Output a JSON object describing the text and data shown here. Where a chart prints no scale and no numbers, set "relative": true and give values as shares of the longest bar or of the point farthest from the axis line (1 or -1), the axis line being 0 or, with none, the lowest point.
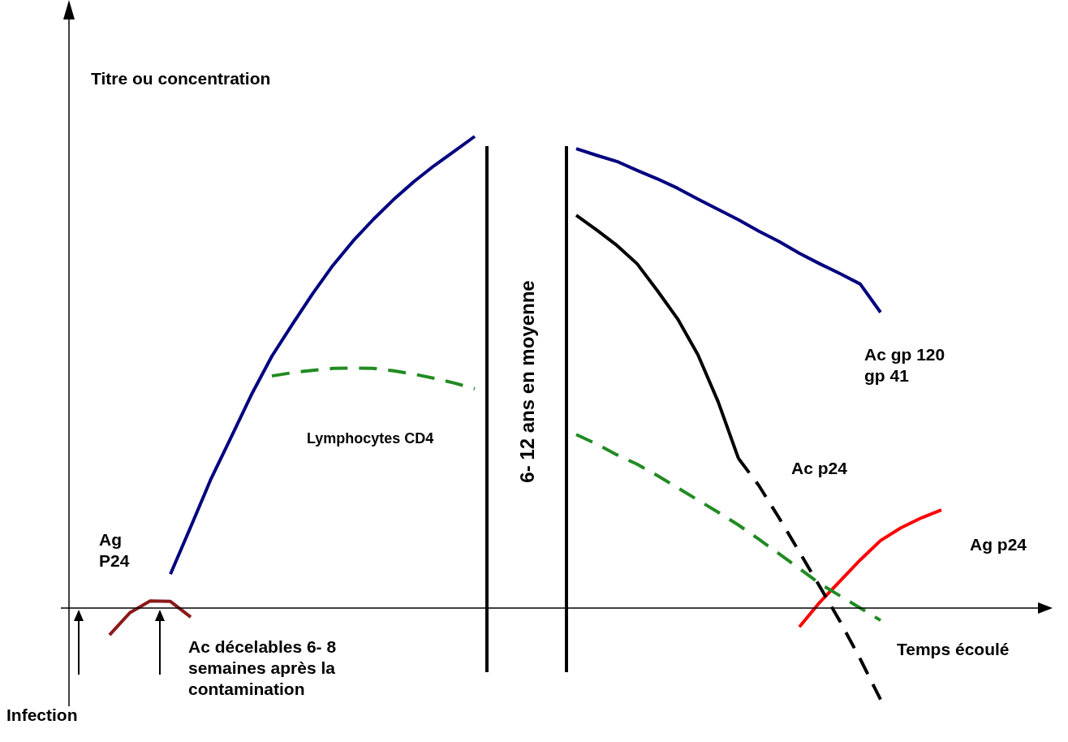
{
  "chart_data": {
    "type": "line",
    "relative": true,
    "tick_labels": false,
    "grid": false,
    "legend": false,
    "marker": "none",
    "xlabel": "Temps écoulé",
    "ylabel": "Titre ou concentration",
    "categories": [
      null,
      null,
      null,
      null,
      null,
      null,
      null,
      null,
      null,
      null,
      null,
      null,
      null,
      null,
      null,
      null,
      null,
      null,
      null,
      null,
      null,
      null,
      null,
      null,
      null,
      null,
      null,
      null,
      null,
      null,
      null,
      null,
      null,
      null,
      null,
      null,
      null,
      null,
      null,
      null,
      null,
      null,
      null,
      null,
      null,
      null,
      null,
      null,
      null
    ],
    "series": [
      {
        "color": "#8b1a1a",
        "values": [
          null,
          null,
          -0.057,
          -0.01,
          0.015,
          0.014,
          -0.019,
          null,
          null,
          null,
          null,
          null,
          null,
          null,
          null,
          null,
          null,
          null,
          null,
          null,
          null,
          null,
          null,
          null,
          null,
          null,
          null,
          null,
          null,
          null,
          null,
          null,
          null,
          null,
          null,
          null,
          null,
          null,
          null,
          null,
          null,
          null,
          null,
          null,
          null,
          null,
          null,
          null,
          null
        ]
      },
      {
        "color": "#000080",
        "values": [
          null,
          null,
          null,
          null,
          null,
          0.072,
          0.172,
          0.274,
          0.363,
          0.453,
          0.534,
          0.601,
          0.666,
          0.726,
          0.778,
          0.824,
          0.866,
          0.904,
          0.938,
          0.969,
          1.0,
          null,
          null,
          null,
          null,
          null,
          null,
          null,
          null,
          null,
          null,
          null,
          null,
          null,
          null,
          null,
          null,
          null,
          null,
          null,
          null,
          null,
          null,
          null,
          null,
          null,
          null,
          null,
          null
        ]
      },
      {
        "color": "#228b22",
        "line_style": "dashed",
        "values": [
          null,
          null,
          null,
          null,
          null,
          null,
          null,
          null,
          null,
          null,
          0.492,
          0.499,
          0.504,
          0.508,
          0.509,
          0.508,
          0.503,
          0.496,
          0.487,
          0.477,
          0.465,
          null,
          null,
          null,
          null,
          null,
          null,
          null,
          null,
          null,
          null,
          null,
          null,
          null,
          null,
          null,
          null,
          null,
          null,
          null,
          null,
          null,
          null,
          null,
          null,
          null,
          null,
          null,
          null
        ]
      },
      {
        "color": "#000080",
        "values": [
          null,
          null,
          null,
          null,
          null,
          null,
          null,
          null,
          null,
          null,
          null,
          null,
          null,
          null,
          null,
          null,
          null,
          null,
          null,
          null,
          null,
          null,
          null,
          null,
          null,
          0.974,
          0.96,
          0.947,
          0.928,
          0.91,
          0.89,
          0.867,
          0.845,
          0.823,
          0.799,
          0.777,
          0.752,
          0.73,
          0.709,
          0.687,
          0.627,
          null,
          null,
          null,
          null,
          null,
          null,
          null,
          null
        ]
      },
      {
        "color": "#000000",
        "values": [
          null,
          null,
          null,
          null,
          null,
          null,
          null,
          null,
          null,
          null,
          null,
          null,
          null,
          null,
          null,
          null,
          null,
          null,
          null,
          null,
          null,
          null,
          null,
          null,
          null,
          0.833,
          0.802,
          0.769,
          0.73,
          0.673,
          0.613,
          0.537,
          0.437,
          0.317,
          null,
          null,
          null,
          null,
          null,
          null,
          null,
          null,
          null,
          null,
          null,
          null,
          null,
          null,
          null
        ]
      },
      {
        "color": "#000000",
        "line_style": "dashed",
        "values": [
          null,
          null,
          null,
          null,
          null,
          null,
          null,
          null,
          null,
          null,
          null,
          null,
          null,
          null,
          null,
          null,
          null,
          null,
          null,
          null,
          null,
          null,
          null,
          null,
          null,
          null,
          null,
          null,
          null,
          null,
          null,
          null,
          null,
          0.317,
          0.26,
          0.191,
          0.119,
          0.046,
          -0.028,
          -0.108,
          -0.194,
          null,
          null,
          null,
          null,
          null,
          null,
          null,
          null
        ]
      },
      {
        "color": "#228b22",
        "line_style": "dashed",
        "values": [
          null,
          null,
          null,
          null,
          null,
          null,
          null,
          null,
          null,
          null,
          null,
          null,
          null,
          null,
          null,
          null,
          null,
          null,
          null,
          null,
          null,
          null,
          null,
          null,
          null,
          0.368,
          0.348,
          0.325,
          0.305,
          0.281,
          0.255,
          0.229,
          0.203,
          0.176,
          0.146,
          0.115,
          0.084,
          0.052,
          0.026,
          0.0,
          -0.026,
          null,
          null,
          null,
          null,
          null,
          null,
          null,
          null
        ]
      },
      {
        "color": "#ff0000",
        "values": [
          null,
          null,
          null,
          null,
          null,
          null,
          null,
          null,
          null,
          null,
          null,
          null,
          null,
          null,
          null,
          null,
          null,
          null,
          null,
          null,
          null,
          null,
          null,
          null,
          null,
          null,
          null,
          null,
          null,
          null,
          null,
          null,
          null,
          null,
          null,
          null,
          -0.04,
          0.012,
          0.057,
          0.102,
          0.143,
          0.17,
          0.191,
          0.208,
          null,
          null,
          null,
          null,
          null
        ]
      }
    ],
    "annotations": [
      "Infection",
      "Ag P24",
      "Ac décelables 6- 8 semaines après la contamination",
      "Lymphocytes CD4",
      "Ac gp 120 gp 41",
      "Ac p24",
      "Ag p24",
      "6- 12 ans en moyenne"
    ]
  }
}
